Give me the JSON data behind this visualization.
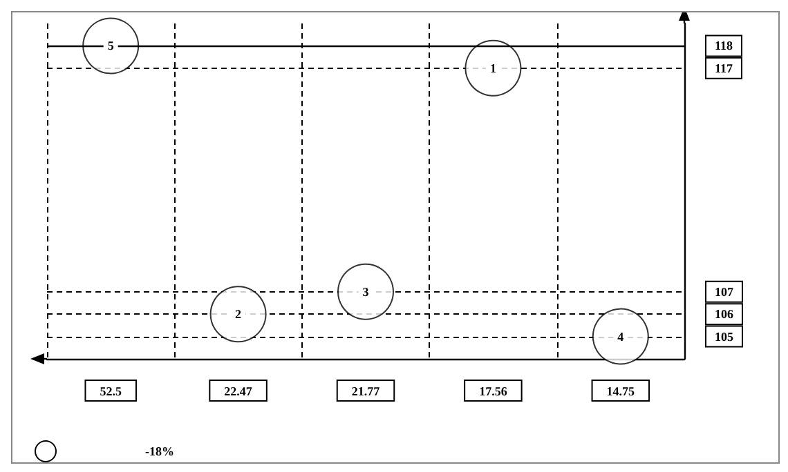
{
  "chart_data": {
    "type": "scatter",
    "categories": [
      "52.5",
      "22.47",
      "21.77",
      "17.56",
      "14.75"
    ],
    "values": [
      118,
      106,
      107,
      117,
      105
    ],
    "color": "#000000",
    "ylim": [
      104,
      119
    ],
    "grid": true,
    "yticks": [
      105,
      106,
      107,
      117,
      118
    ],
    "ref_lines": [
      {
        "axis": "y",
        "value": 118,
        "label": null
      }
    ],
    "annotations": [
      {
        "text": "5",
        "x": "52.5",
        "y": 118
      },
      {
        "text": "2",
        "x": "22.47",
        "y": 106
      },
      {
        "text": "3",
        "x": "21.77",
        "y": 107
      },
      {
        "text": "1",
        "x": "17.56",
        "y": 117
      },
      {
        "text": "4",
        "x": "14.75",
        "y": 105
      },
      "-18%"
    ]
  }
}
